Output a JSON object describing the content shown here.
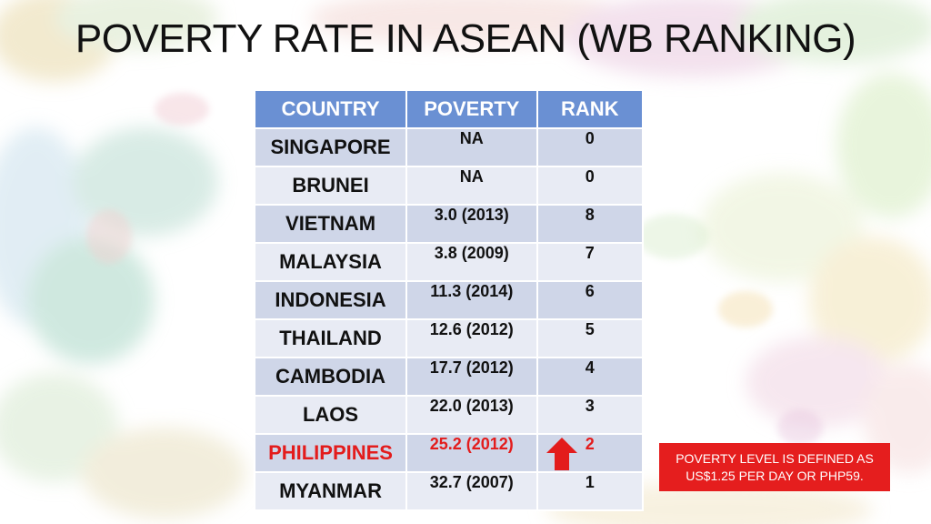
{
  "title": "POVERTY RATE IN ASEAN (WB RANKING)",
  "table": {
    "headers": [
      "COUNTRY",
      "POVERTY",
      "RANK"
    ],
    "rows": [
      {
        "country": "SINGAPORE",
        "poverty": "NA",
        "rank": "0"
      },
      {
        "country": "BRUNEI",
        "poverty": "NA",
        "rank": "0"
      },
      {
        "country": "VIETNAM",
        "poverty": "3.0 (2013)",
        "rank": "8"
      },
      {
        "country": "MALAYSIA",
        "poverty": "3.8 (2009)",
        "rank": "7"
      },
      {
        "country": "INDONESIA",
        "poverty": "11.3 (2014)",
        "rank": "6"
      },
      {
        "country": "THAILAND",
        "poverty": "12.6 (2012)",
        "rank": "5"
      },
      {
        "country": "CAMBODIA",
        "poverty": "17.7 (2012)",
        "rank": "4"
      },
      {
        "country": "LAOS",
        "poverty": "22.0 (2013)",
        "rank": "3"
      },
      {
        "country": "PHILIPPINES",
        "poverty": "25.2 (2012)",
        "rank": "2",
        "highlight": true,
        "arrow": "up-arrow-icon"
      },
      {
        "country": "MYANMAR",
        "poverty": "32.7 (2007)",
        "rank": "1"
      }
    ]
  },
  "note": {
    "line1": "POVERTY LEVEL IS DEFINED AS",
    "line2": "US$1.25 PER DAY OR PHP59."
  },
  "colors": {
    "header_bg": "#6a90d3",
    "row_dark": "#cfd6e8",
    "row_light": "#e8ebf4",
    "highlight": "#e31c1c",
    "note_bg": "#e51e1e"
  }
}
